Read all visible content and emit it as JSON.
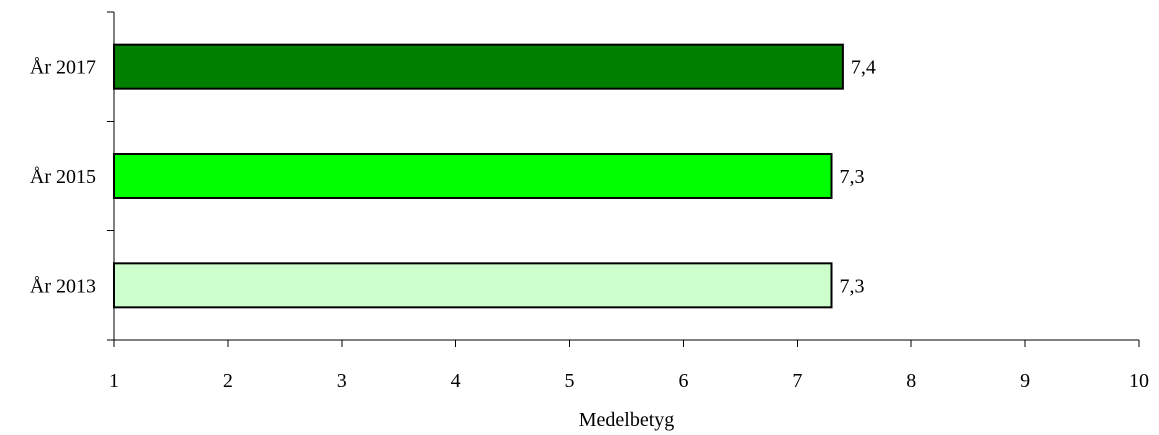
{
  "chart_data": {
    "type": "bar",
    "orientation": "horizontal",
    "categories": [
      "År 2017",
      "År 2015",
      "År 2013"
    ],
    "values": [
      7.4,
      7.3,
      7.3
    ],
    "value_labels": [
      "7,4",
      "7,3",
      "7,3"
    ],
    "bar_colors": [
      "#008000",
      "#00ff00",
      "#ccffcc"
    ],
    "title": "",
    "xlabel": "Medelbetyg",
    "ylabel": "",
    "xlim": [
      1,
      10
    ],
    "x_ticks": [
      1,
      2,
      3,
      4,
      5,
      6,
      7,
      8,
      9,
      10
    ],
    "x_tick_labels": [
      "1",
      "2",
      "3",
      "4",
      "5",
      "6",
      "7",
      "8",
      "9",
      "10"
    ],
    "grid": false,
    "legend": "none"
  }
}
